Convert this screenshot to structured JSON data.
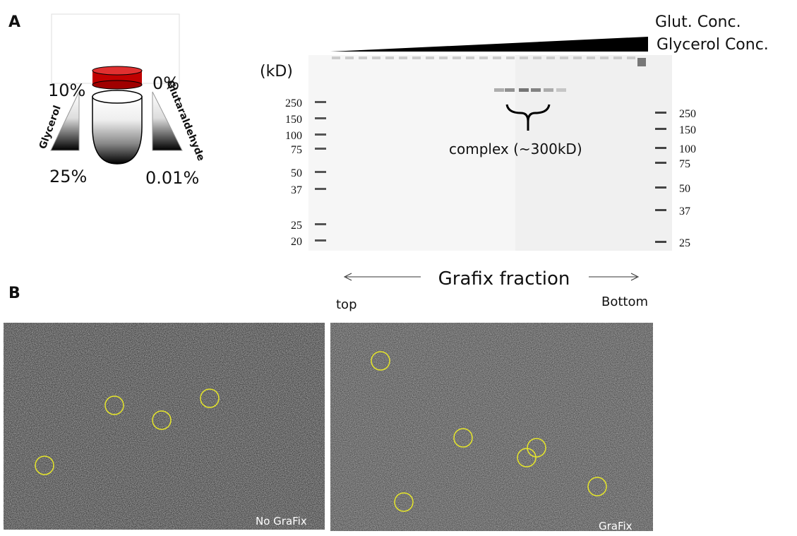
{
  "panel_a": {
    "label": "A",
    "gradient": {
      "glycerol_top": "10%",
      "glycerol_bottom": "25%",
      "glycerol_label": "Glycerol",
      "glut_top": "0%",
      "glut_bottom": "0.01%",
      "glut_label": "Glutaraldehyde"
    },
    "gel": {
      "top_labels": [
        "Glut. Conc.",
        "Glycerol Conc."
      ],
      "unit": "(kD)",
      "left_markers": [
        250,
        150,
        100,
        75,
        50,
        37,
        25,
        20
      ],
      "right_markers": [
        250,
        150,
        100,
        75,
        50,
        37,
        25
      ],
      "annotation": "complex (~300kD)",
      "axis_label": "Grafix fraction",
      "left_end": "top",
      "right_end": "Bottom"
    }
  },
  "panel_b": {
    "label": "B",
    "images": [
      {
        "caption": "No GraFix"
      },
      {
        "caption": "GraFix"
      }
    ]
  }
}
